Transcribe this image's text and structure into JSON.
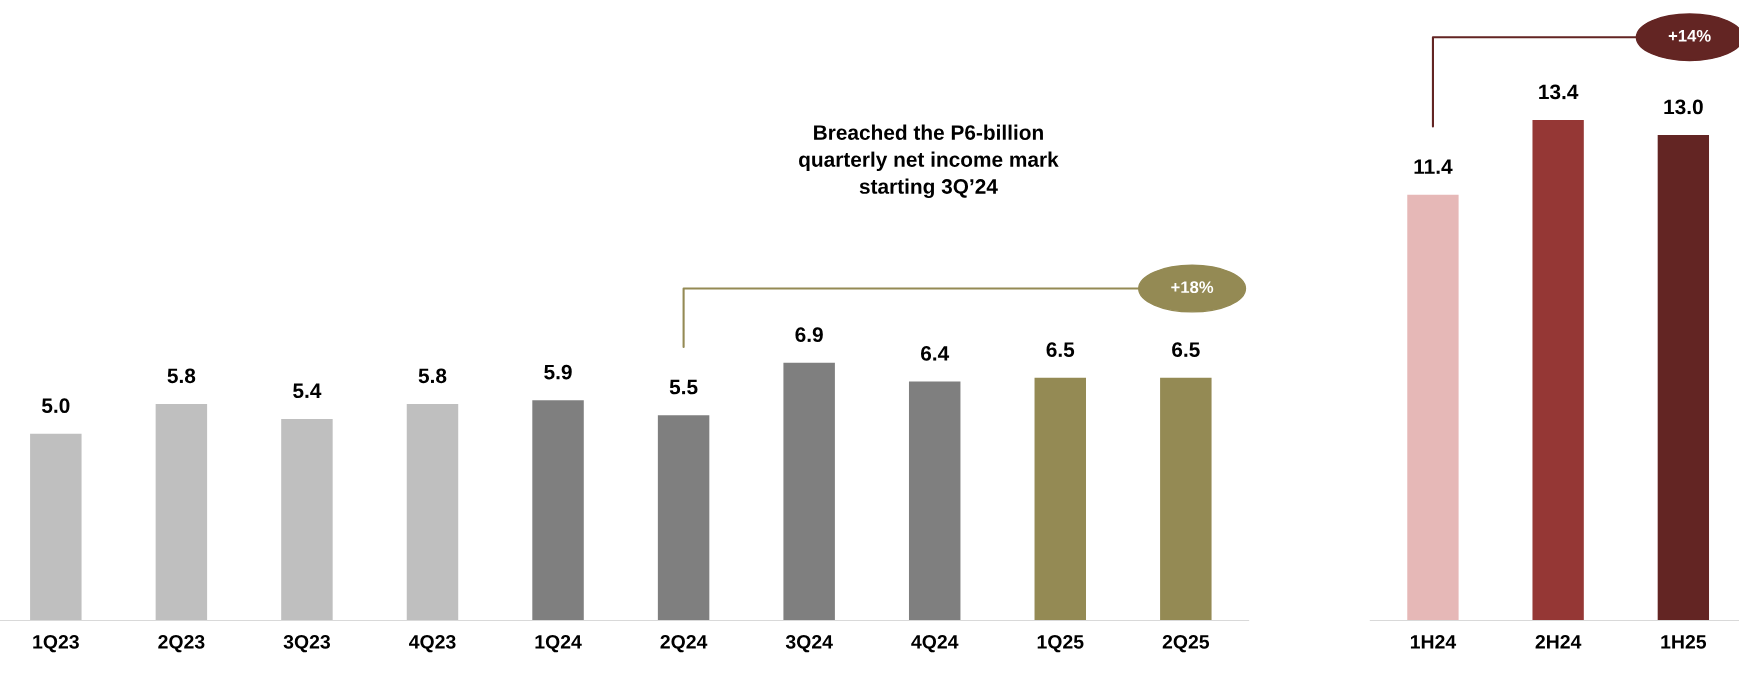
{
  "chart_data": [
    {
      "type": "bar",
      "categories": [
        "1Q23",
        "2Q23",
        "3Q23",
        "4Q23",
        "1Q24",
        "2Q24",
        "3Q24",
        "4Q24",
        "1Q25",
        "2Q25"
      ],
      "values": [
        5.0,
        5.8,
        5.4,
        5.8,
        5.9,
        5.5,
        6.9,
        6.4,
        6.5,
        6.5
      ],
      "value_labels": [
        "5.0",
        "5.8",
        "5.4",
        "5.8",
        "5.9",
        "5.5",
        "6.9",
        "6.4",
        "6.5",
        "6.5"
      ],
      "colors": [
        "#bfbfbf",
        "#bfbfbf",
        "#bfbfbf",
        "#bfbfbf",
        "#7f7f7f",
        "#7f7f7f",
        "#7f7f7f",
        "#7f7f7f",
        "#948a54",
        "#948a54"
      ],
      "annotations": [
        "+18%",
        "Breached the P6-billion quarterly net income mark starting 3Q’24"
      ]
    },
    {
      "type": "bar",
      "categories": [
        "1H24",
        "2H24",
        "1H25"
      ],
      "values": [
        11.4,
        13.4,
        13.0
      ],
      "value_labels": [
        "11.4",
        "13.4",
        "13.0"
      ],
      "colors": [
        "#e6b8b7",
        "#953735",
        "#632523"
      ],
      "annotations": [
        "+14%"
      ]
    }
  ]
}
